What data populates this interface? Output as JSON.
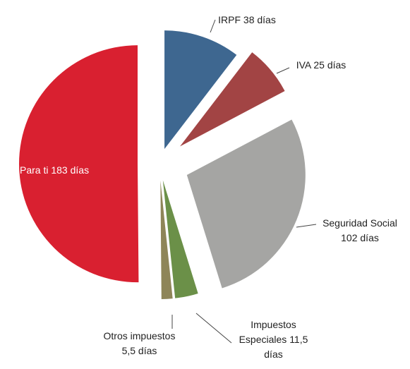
{
  "chart_data": {
    "type": "pie",
    "categories": [
      "IRPF",
      "IVA",
      "Seguridad Social",
      "Impuestos Especiales",
      "Otros impuestos",
      "Para ti"
    ],
    "values": [
      38,
      25,
      102,
      11.5,
      5.5,
      183
    ],
    "value_labels": [
      "38 días",
      "25 días",
      "102 días",
      "11,5 días",
      "5,5 días",
      "183 días"
    ],
    "colors": [
      "#3e6790",
      "#a24444",
      "#a5a5a3",
      "#6b9048",
      "#8e8558",
      "#d92030"
    ]
  }
}
